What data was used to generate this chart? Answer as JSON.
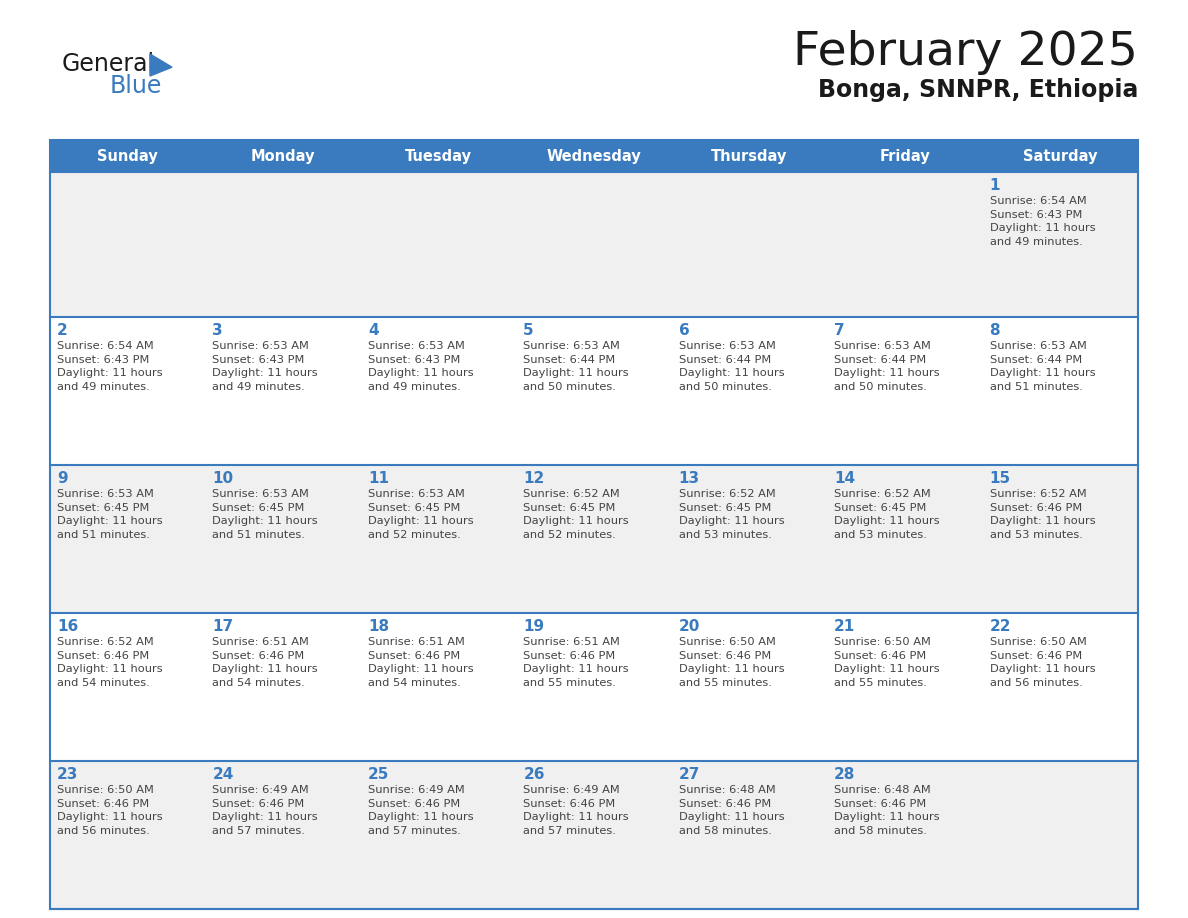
{
  "title": "February 2025",
  "subtitle": "Bonga, SNNPR, Ethiopia",
  "header_color": "#3a7abf",
  "header_text_color": "#ffffff",
  "background_color": "#ffffff",
  "cell_bg_even": "#f0f0f0",
  "cell_bg_odd": "#ffffff",
  "day_text_color": "#3a7abf",
  "info_text_color": "#444444",
  "border_color": "#3a7abf",
  "days_of_week": [
    "Sunday",
    "Monday",
    "Tuesday",
    "Wednesday",
    "Thursday",
    "Friday",
    "Saturday"
  ],
  "weeks": [
    [
      null,
      null,
      null,
      null,
      null,
      null,
      1
    ],
    [
      2,
      3,
      4,
      5,
      6,
      7,
      8
    ],
    [
      9,
      10,
      11,
      12,
      13,
      14,
      15
    ],
    [
      16,
      17,
      18,
      19,
      20,
      21,
      22
    ],
    [
      23,
      24,
      25,
      26,
      27,
      28,
      null
    ]
  ],
  "cell_data": {
    "1": {
      "sunrise": "6:54 AM",
      "sunset": "6:43 PM",
      "daylight": "11 hours and 49 minutes."
    },
    "2": {
      "sunrise": "6:54 AM",
      "sunset": "6:43 PM",
      "daylight": "11 hours and 49 minutes."
    },
    "3": {
      "sunrise": "6:53 AM",
      "sunset": "6:43 PM",
      "daylight": "11 hours and 49 minutes."
    },
    "4": {
      "sunrise": "6:53 AM",
      "sunset": "6:43 PM",
      "daylight": "11 hours and 49 minutes."
    },
    "5": {
      "sunrise": "6:53 AM",
      "sunset": "6:44 PM",
      "daylight": "11 hours and 50 minutes."
    },
    "6": {
      "sunrise": "6:53 AM",
      "sunset": "6:44 PM",
      "daylight": "11 hours and 50 minutes."
    },
    "7": {
      "sunrise": "6:53 AM",
      "sunset": "6:44 PM",
      "daylight": "11 hours and 50 minutes."
    },
    "8": {
      "sunrise": "6:53 AM",
      "sunset": "6:44 PM",
      "daylight": "11 hours and 51 minutes."
    },
    "9": {
      "sunrise": "6:53 AM",
      "sunset": "6:45 PM",
      "daylight": "11 hours and 51 minutes."
    },
    "10": {
      "sunrise": "6:53 AM",
      "sunset": "6:45 PM",
      "daylight": "11 hours and 51 minutes."
    },
    "11": {
      "sunrise": "6:53 AM",
      "sunset": "6:45 PM",
      "daylight": "11 hours and 52 minutes."
    },
    "12": {
      "sunrise": "6:52 AM",
      "sunset": "6:45 PM",
      "daylight": "11 hours and 52 minutes."
    },
    "13": {
      "sunrise": "6:52 AM",
      "sunset": "6:45 PM",
      "daylight": "11 hours and 53 minutes."
    },
    "14": {
      "sunrise": "6:52 AM",
      "sunset": "6:45 PM",
      "daylight": "11 hours and 53 minutes."
    },
    "15": {
      "sunrise": "6:52 AM",
      "sunset": "6:46 PM",
      "daylight": "11 hours and 53 minutes."
    },
    "16": {
      "sunrise": "6:52 AM",
      "sunset": "6:46 PM",
      "daylight": "11 hours and 54 minutes."
    },
    "17": {
      "sunrise": "6:51 AM",
      "sunset": "6:46 PM",
      "daylight": "11 hours and 54 minutes."
    },
    "18": {
      "sunrise": "6:51 AM",
      "sunset": "6:46 PM",
      "daylight": "11 hours and 54 minutes."
    },
    "19": {
      "sunrise": "6:51 AM",
      "sunset": "6:46 PM",
      "daylight": "11 hours and 55 minutes."
    },
    "20": {
      "sunrise": "6:50 AM",
      "sunset": "6:46 PM",
      "daylight": "11 hours and 55 minutes."
    },
    "21": {
      "sunrise": "6:50 AM",
      "sunset": "6:46 PM",
      "daylight": "11 hours and 55 minutes."
    },
    "22": {
      "sunrise": "6:50 AM",
      "sunset": "6:46 PM",
      "daylight": "11 hours and 56 minutes."
    },
    "23": {
      "sunrise": "6:50 AM",
      "sunset": "6:46 PM",
      "daylight": "11 hours and 56 minutes."
    },
    "24": {
      "sunrise": "6:49 AM",
      "sunset": "6:46 PM",
      "daylight": "11 hours and 57 minutes."
    },
    "25": {
      "sunrise": "6:49 AM",
      "sunset": "6:46 PM",
      "daylight": "11 hours and 57 minutes."
    },
    "26": {
      "sunrise": "6:49 AM",
      "sunset": "6:46 PM",
      "daylight": "11 hours and 57 minutes."
    },
    "27": {
      "sunrise": "6:48 AM",
      "sunset": "6:46 PM",
      "daylight": "11 hours and 58 minutes."
    },
    "28": {
      "sunrise": "6:48 AM",
      "sunset": "6:46 PM",
      "daylight": "11 hours and 58 minutes."
    }
  }
}
